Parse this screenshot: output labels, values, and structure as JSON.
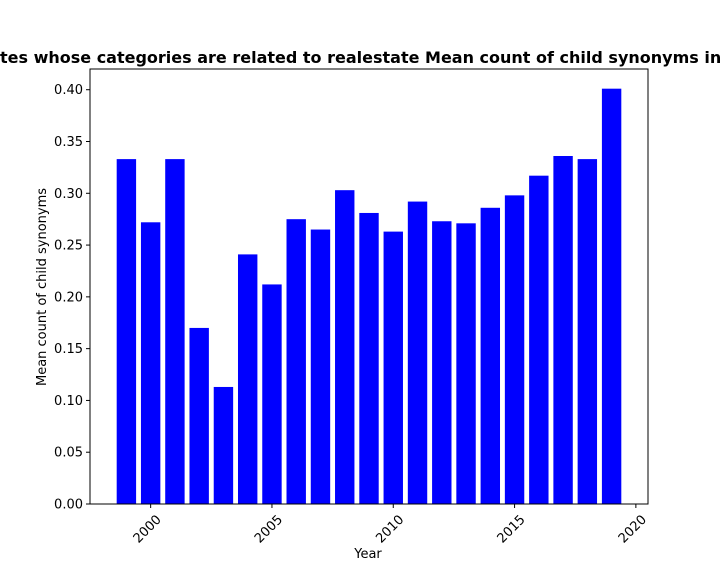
{
  "chart_data": {
    "type": "bar",
    "title": "Percentage of sites whose categories are related to realestate Mean count of child synonyms in privacy policies",
    "xlabel": "Year",
    "ylabel": "Mean count of child synonyms",
    "x": [
      1999,
      2000,
      2001,
      2002,
      2003,
      2004,
      2005,
      2006,
      2007,
      2008,
      2009,
      2010,
      2011,
      2012,
      2013,
      2014,
      2015,
      2016,
      2017,
      2018,
      2019
    ],
    "values": [
      0.333,
      0.272,
      0.333,
      0.17,
      0.113,
      0.241,
      0.212,
      0.275,
      0.265,
      0.303,
      0.281,
      0.263,
      0.292,
      0.273,
      0.271,
      0.286,
      0.298,
      0.317,
      0.336,
      0.333,
      0.401
    ],
    "xlim": [
      1997.5,
      2020.5
    ],
    "ylim": [
      0,
      0.42
    ],
    "xticks": [
      2000,
      2005,
      2010,
      2015,
      2020
    ],
    "xtick_labels": [
      "2000",
      "2005",
      "2010",
      "2015",
      "2020"
    ],
    "yticks": [
      0.0,
      0.05,
      0.1,
      0.15,
      0.2,
      0.25,
      0.3,
      0.35,
      0.4
    ],
    "ytick_labels": [
      "0.00",
      "0.05",
      "0.10",
      "0.15",
      "0.20",
      "0.25",
      "0.30",
      "0.35",
      "0.40"
    ],
    "bar_color": "#0000ff",
    "grid": false,
    "legend": false
  }
}
